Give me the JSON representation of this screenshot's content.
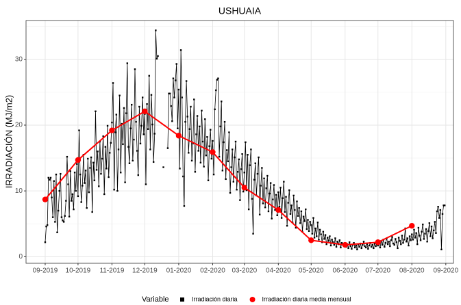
{
  "chart_data": {
    "type": "line",
    "title": "USHUAIA",
    "y_label": "IRRADIACIÓN (MJ/m2)",
    "legend_title": "Variable",
    "legend_position": "bottom",
    "grid": true,
    "xlim": [
      -17.5,
      373
    ],
    "ylim": [
      -1.0,
      35.9
    ],
    "xticks": [
      {
        "value": 0,
        "label": "09-2019"
      },
      {
        "value": 30,
        "label": "10-2019"
      },
      {
        "value": 61,
        "label": "11-2019"
      },
      {
        "value": 91,
        "label": "12-2019"
      },
      {
        "value": 122,
        "label": "01-2020"
      },
      {
        "value": 153,
        "label": "02-2020"
      },
      {
        "value": 182,
        "label": "03-2020"
      },
      {
        "value": 213,
        "label": "04-2020"
      },
      {
        "value": 243,
        "label": "05-2020"
      },
      {
        "value": 274,
        "label": "06-2020"
      },
      {
        "value": 304,
        "label": "07-2020"
      },
      {
        "value": 335,
        "label": "08-2020"
      },
      {
        "value": 366,
        "label": "09-2020"
      }
    ],
    "yticks": [
      0,
      10,
      20,
      30
    ],
    "yminor": [
      5,
      15,
      25,
      35
    ],
    "series": [
      {
        "name": "Irradiación diaria",
        "color": "#000000",
        "marker": "square",
        "x": [
          0,
          1,
          2,
          3,
          4,
          5,
          6,
          7,
          8,
          9,
          10,
          11,
          12,
          13,
          14,
          15,
          16,
          17,
          18,
          19,
          20,
          21,
          22,
          23,
          24,
          25,
          26,
          27,
          28,
          29,
          30,
          31,
          32,
          33,
          34,
          35,
          36,
          37,
          38,
          39,
          40,
          41,
          42,
          43,
          44,
          45,
          46,
          47,
          48,
          49,
          50,
          51,
          52,
          53,
          54,
          55,
          56,
          57,
          58,
          59,
          60,
          61,
          62,
          63,
          64,
          65,
          66,
          67,
          68,
          69,
          70,
          71,
          72,
          73,
          74,
          75,
          76,
          77,
          78,
          79,
          80,
          81,
          82,
          83,
          84,
          85,
          86,
          87,
          88,
          89,
          90,
          91,
          92,
          93,
          94,
          95,
          96,
          97,
          98,
          99,
          100,
          101,
          102,
          103,
          104,
          105,
          106,
          107,
          108,
          109,
          110,
          111,
          112,
          113,
          114,
          115,
          116,
          117,
          118,
          119,
          120,
          121,
          122,
          123,
          124,
          125,
          126,
          127,
          128,
          129,
          130,
          131,
          132,
          133,
          134,
          135,
          136,
          137,
          138,
          139,
          140,
          141,
          142,
          143,
          144,
          145,
          146,
          147,
          148,
          149,
          150,
          151,
          152,
          153,
          154,
          155,
          156,
          157,
          158,
          159,
          160,
          161,
          162,
          163,
          164,
          165,
          166,
          167,
          168,
          169,
          170,
          171,
          172,
          173,
          174,
          175,
          176,
          177,
          178,
          179,
          180,
          181,
          182,
          183,
          184,
          185,
          186,
          187,
          188,
          189,
          190,
          191,
          192,
          193,
          194,
          195,
          196,
          197,
          198,
          199,
          200,
          201,
          202,
          203,
          204,
          205,
          206,
          207,
          208,
          209,
          210,
          211,
          212,
          213,
          214,
          215,
          216,
          217,
          218,
          219,
          220,
          221,
          222,
          223,
          224,
          225,
          226,
          227,
          228,
          229,
          230,
          231,
          232,
          233,
          234,
          235,
          236,
          237,
          238,
          239,
          240,
          241,
          242,
          243,
          244,
          245,
          246,
          247,
          248,
          249,
          250,
          251,
          252,
          253,
          254,
          255,
          256,
          257,
          258,
          259,
          260,
          261,
          262,
          263,
          264,
          265,
          266,
          267,
          268,
          269,
          270,
          271,
          272,
          273,
          274,
          275,
          276,
          277,
          278,
          279,
          280,
          281,
          282,
          283,
          284,
          285,
          286,
          287,
          288,
          289,
          290,
          291,
          292,
          293,
          294,
          295,
          296,
          297,
          298,
          299,
          300,
          301,
          302,
          303,
          304,
          305,
          306,
          307,
          308,
          309,
          310,
          311,
          312,
          313,
          314,
          315,
          316,
          317,
          318,
          319,
          320,
          321,
          322,
          323,
          324,
          325,
          326,
          327,
          328,
          329,
          330,
          331,
          332,
          333,
          334,
          335,
          336,
          337,
          338,
          339,
          340,
          341,
          342,
          343,
          344,
          345,
          346,
          347,
          348,
          349,
          350,
          351,
          352,
          353,
          354,
          355,
          356,
          357,
          358,
          359,
          360,
          361,
          362,
          363,
          364,
          365
        ],
        "values": [
          2.2,
          4.6,
          4.8,
          12,
          11.7,
          12,
          9,
          6,
          11.5,
          5.3,
          12.5,
          3.7,
          7,
          10,
          12.6,
          6,
          5.5,
          5.3,
          6.2,
          8.5,
          15.2,
          11,
          6.1,
          13,
          8.5,
          9.5,
          7.2,
          12.8,
          10,
          14.1,
          9.2,
          19.2,
          12.5,
          8.3,
          10.8,
          15.5,
          11.2,
          13.1,
          7.4,
          14.9,
          9.8,
          13.5,
          15.1,
          6.8,
          14.3,
          11.6,
          22.1,
          13.2,
          16,
          10.7,
          17.5,
          12.6,
          14.9,
          18.3,
          9.5,
          16.7,
          13.4,
          19.9,
          12.1,
          15.8,
          17.3,
          20.4,
          26.4,
          10.2,
          18.9,
          21.6,
          10,
          16.3,
          24.5,
          12.8,
          20.2,
          17.1,
          22.6,
          11.3,
          21.8,
          29.4,
          16.7,
          14.2,
          19.5,
          23.1,
          14.6,
          17.8,
          28.5,
          20.5,
          16.1,
          12.4,
          22.8,
          17.2,
          19.9,
          24.2,
          18.6,
          21.7,
          11,
          23.2,
          19.4,
          27.5,
          16.3,
          24.6,
          20.1,
          14.4,
          18.7,
          34.4,
          30.1,
          30.5,
          null,
          null,
          null,
          null,
          13.6,
          null,
          null,
          null,
          16.5,
          24.8,
          24.8,
          22.9,
          20.6,
          27.1,
          24.2,
          26.8,
          29.3,
          19.5,
          25.4,
          13.4,
          31.4,
          24.2,
          12.2,
          7.7,
          20.5,
          26.7,
          21.3,
          15.8,
          19.4,
          22.8,
          14.6,
          17.2,
          23.9,
          12.9,
          18.6,
          21.4,
          16.1,
          19.8,
          14.3,
          22.2,
          17.5,
          13.7,
          20.9,
          15.4,
          18.2,
          11.6,
          16.8,
          19.3,
          14.9,
          17.6,
          12.5,
          22.4,
          25.3,
          26.9,
          27.1,
          15.2,
          19.8,
          23.6,
          13.1,
          17.4,
          20.5,
          11.8,
          16.2,
          14.5,
          18.9,
          9.7,
          13.6,
          16.3,
          11.4,
          15.1,
          17.5,
          10.2,
          12.9,
          14.8,
          8.6,
          13.3,
          15.6,
          9.9,
          12.8,
          17.4,
          10.1,
          15.5,
          7.2,
          13.9,
          16.3,
          8.8,
          3.5,
          11.7,
          14.2,
          9.3,
          12.6,
          15.1,
          6.4,
          10.8,
          13.5,
          8.1,
          11.9,
          7.5,
          10.4,
          12.3,
          6.9,
          9.6,
          11.2,
          5.8,
          8.7,
          10.9,
          7.1,
          9.4,
          6.3,
          9.8,
          7.6,
          10.5,
          5.9,
          8.9,
          11.4,
          6.8,
          9.1,
          4.7,
          8.2,
          10.1,
          6.5,
          7.8,
          5.2,
          9.3,
          7.1,
          4.4,
          8.4,
          6.2,
          7.4,
          5.1,
          6.9,
          3.8,
          6.1,
          5.4,
          7.2,
          4.2,
          5.6,
          3.9,
          5.3,
          4.8,
          3.5,
          5.9,
          2.9,
          4.3,
          3.1,
          5.2,
          2.6,
          4.1,
          3.4,
          2.2,
          3.8,
          2.7,
          3.3,
          1.9,
          2.9,
          2.4,
          3.1,
          1.7,
          2.6,
          2.2,
          1.8,
          2.8,
          1.5,
          2.3,
          1.9,
          2.5,
          1.4,
          2.1,
          1.8,
          1.6,
          2.0,
          1.5,
          1.9,
          1.3,
          2.2,
          1.6,
          1.2,
          1.8,
          2.1,
          1.4,
          1.7,
          1.1,
          1.9,
          1.5,
          2.0,
          1.3,
          1.8,
          2.3,
          1.6,
          1.4,
          1.9,
          1.2,
          1.7,
          2.1,
          1.5,
          1.8,
          1.3,
          2.0,
          1.6,
          1.9,
          1.7,
          2.2,
          1.4,
          2.4,
          1.8,
          2.6,
          1.5,
          2.1,
          2.8,
          1.9,
          2.3,
          1.6,
          2.5,
          3.0,
          2.0,
          1.8,
          2.7,
          2.2,
          1.3,
          2.9,
          2.4,
          1.9,
          3.2,
          2.1,
          2.6,
          4.3,
          2.3,
          2.8,
          1.7,
          3.1,
          2.5,
          3.4,
          2.6,
          4.1,
          2.9,
          3.6,
          1.9,
          4.4,
          3.2,
          2.5,
          3.8,
          4.9,
          2.7,
          3.5,
          4.2,
          2.3,
          3.9,
          5.1,
          3.1,
          4.6,
          2.8,
          4.0,
          5.3,
          3.6,
          6.9,
          7.6,
          5.9,
          7.1,
          1.1,
          6.5,
          7.8,
          7.8
        ]
      },
      {
        "name": "Irradiación diaria media mensual",
        "color": "#ff0000",
        "marker": "circle",
        "x": [
          0,
          30,
          61,
          91,
          122,
          153,
          182,
          213,
          243,
          274,
          304,
          335
        ],
        "values": [
          8.7,
          14.7,
          19.2,
          22.1,
          18.4,
          15.9,
          10.5,
          7.1,
          2.5,
          1.8,
          2.2,
          4.7
        ]
      }
    ]
  }
}
